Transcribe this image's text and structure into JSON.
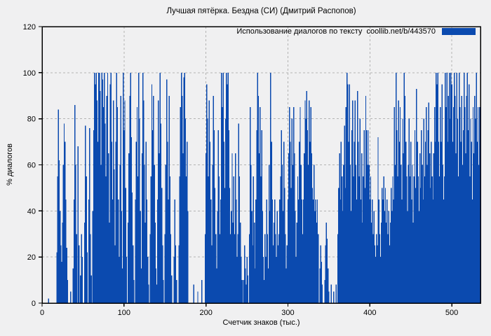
{
  "title": "Лучшая пятёрка. Бездна (СИ) (Дмитрий Распопов)",
  "legend": {
    "label": "Использование диалогов по тексту  coollib.net/b/443570",
    "swatch_color": "#0b4aaf"
  },
  "colors": {
    "bar": "#0b4aaf",
    "background": "#f0f0f1",
    "grid": "#b3b3b3",
    "border": "#000000"
  },
  "chart_data": {
    "type": "bar",
    "title": "Лучшая пятёрка. Бездна (СИ) (Дмитрий Распопов)",
    "legend_entry": "Использование диалогов по тексту  coollib.net/b/443570",
    "legend_position": "top-right-inside",
    "xlabel": "Счетчик знаков (тыс.)",
    "ylabel": "% диалогов",
    "xlim": [
      0,
      535
    ],
    "ylim": [
      0,
      120
    ],
    "x_ticks": [
      0,
      100,
      200,
      300,
      400,
      500
    ],
    "y_ticks": [
      0,
      20,
      40,
      60,
      80,
      100,
      120
    ],
    "grid": true,
    "bar_color": "#0b4aaf",
    "x_start": 0,
    "x_step": 1,
    "x_unit": "тыс. знаков",
    "values": [
      8,
      0,
      0,
      0,
      0,
      0,
      0,
      0,
      2,
      0,
      0,
      0,
      0,
      0,
      0,
      0,
      0,
      0,
      22,
      55,
      84,
      62,
      40,
      25,
      18,
      35,
      60,
      78,
      70,
      45,
      24,
      10,
      0,
      0,
      0,
      5,
      0,
      0,
      15,
      45,
      86,
      60,
      30,
      0,
      68,
      25,
      0,
      12,
      30,
      20,
      0,
      0,
      35,
      77,
      55,
      22,
      0,
      45,
      76,
      30,
      12,
      0,
      40,
      75,
      100,
      95,
      100,
      88,
      70,
      100,
      100,
      92,
      60,
      100,
      97,
      85,
      100,
      78,
      55,
      90,
      100,
      65,
      35,
      95,
      100,
      70,
      45,
      88,
      58,
      25,
      70,
      100,
      85,
      45,
      20,
      60,
      90,
      40,
      15,
      100,
      75,
      88,
      50,
      20,
      0,
      35,
      65,
      90,
      100,
      72,
      48,
      25,
      10,
      0,
      45,
      70,
      85,
      55,
      100,
      80,
      40,
      15,
      65,
      100,
      88,
      60,
      35,
      70,
      45,
      20,
      8,
      0,
      30,
      55,
      95,
      75,
      90,
      60,
      35,
      15,
      8,
      45,
      88,
      65,
      100,
      78,
      50,
      25,
      10,
      0,
      30,
      60,
      97,
      70,
      45,
      90,
      55,
      30,
      12,
      0,
      0,
      20,
      45,
      25,
      10,
      0,
      0,
      25,
      55,
      85,
      100,
      90,
      65,
      98,
      100,
      80,
      55,
      70,
      40,
      0,
      0,
      0,
      0,
      0,
      0,
      8,
      0,
      0,
      0,
      0,
      5,
      0,
      0,
      0,
      0,
      10,
      0,
      0,
      0,
      30,
      65,
      95,
      80,
      55,
      88,
      70,
      45,
      25,
      60,
      90,
      75,
      50,
      30,
      15,
      40,
      75,
      55,
      30,
      45,
      100,
      85,
      100,
      70,
      50,
      80,
      100,
      95,
      100,
      75,
      50,
      30,
      40,
      65,
      35,
      55,
      30,
      65,
      45,
      20,
      30,
      78,
      55,
      35,
      20,
      10,
      0,
      10,
      25,
      15,
      8,
      20,
      12,
      0,
      30,
      85,
      60,
      40,
      25,
      55,
      35,
      15,
      45,
      75,
      100,
      90,
      65,
      85,
      55,
      75,
      40,
      20,
      10,
      30,
      20,
      45,
      30,
      15,
      60,
      40,
      100,
      70,
      45,
      25,
      35,
      45,
      30,
      20,
      40,
      25,
      30,
      45,
      55,
      75,
      60,
      40,
      70,
      50,
      30,
      15,
      25,
      45,
      65,
      85,
      70,
      50,
      80,
      60,
      85,
      65,
      40,
      20,
      35,
      55,
      45,
      70,
      85,
      60,
      45,
      30,
      45,
      65,
      88,
      80,
      92,
      75,
      60,
      88,
      70,
      85,
      65,
      50,
      45,
      60,
      40,
      45,
      35,
      45,
      30,
      0,
      15,
      25,
      18,
      8,
      0,
      0,
      10,
      25,
      35,
      28,
      15,
      5,
      0,
      0,
      8,
      0,
      0,
      5,
      0,
      0,
      8,
      0,
      30,
      50,
      65,
      45,
      70,
      55,
      40,
      60,
      77,
      50,
      85,
      100,
      95,
      70,
      95,
      60,
      40,
      75,
      88,
      55,
      70,
      88,
      60,
      45,
      92,
      70,
      55,
      80,
      45,
      65,
      35,
      55,
      75,
      50,
      90,
      75,
      60,
      75,
      60,
      45,
      55,
      35,
      45,
      30,
      40,
      25,
      20,
      30,
      25,
      72,
      45,
      30,
      20,
      35,
      50,
      45,
      55,
      40,
      50,
      35,
      45,
      30,
      40,
      25,
      35,
      50,
      40,
      55,
      45,
      85,
      60,
      100,
      75,
      55,
      88,
      70,
      85,
      60,
      45,
      80,
      65,
      100,
      90,
      70,
      55,
      40,
      60,
      80,
      55,
      70,
      45,
      60,
      35,
      55,
      75,
      50,
      93,
      70,
      55,
      40,
      65,
      50,
      75,
      60,
      45,
      80,
      55,
      70,
      85,
      60,
      75,
      87,
      65,
      50,
      70,
      55,
      45,
      65,
      85,
      70,
      100,
      95,
      100,
      70,
      55,
      85,
      70,
      95,
      60,
      45,
      55,
      100,
      85,
      100,
      70,
      90,
      100,
      80,
      100,
      95,
      70,
      85,
      100,
      90,
      65,
      100,
      80,
      55,
      100,
      85,
      70,
      90,
      60,
      75,
      100,
      85,
      65,
      90,
      100,
      75,
      95,
      55,
      80,
      70,
      45,
      85,
      65,
      90,
      80,
      100,
      70,
      85,
      60,
      85
    ]
  }
}
